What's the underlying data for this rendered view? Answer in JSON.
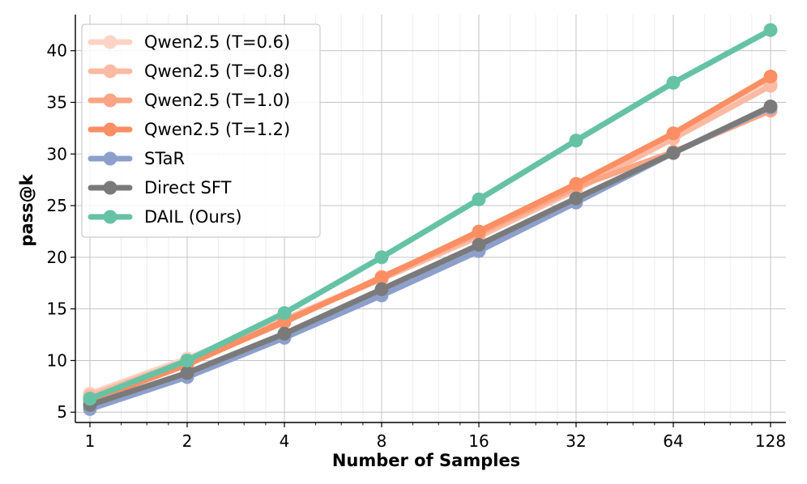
{
  "chart_data": {
    "type": "line",
    "xscale": "log2",
    "x": [
      1,
      2,
      4,
      8,
      16,
      32,
      64,
      128
    ],
    "xticks": [
      "1",
      "2",
      "4",
      "8",
      "16",
      "32",
      "64",
      "128"
    ],
    "yticks": [
      5,
      10,
      15,
      20,
      25,
      30,
      35,
      40
    ],
    "ylim": [
      4,
      43.5
    ],
    "xlabel": "Number of Samples",
    "ylabel": "pass@k",
    "grid": true,
    "legend_position": "top-left",
    "series": [
      {
        "name": "Qwen2.5 (T=0.6)",
        "color": "#fcd3c5",
        "values": [
          6.8,
          10.2,
          14.0,
          18.0,
          22.0,
          26.5,
          31.5,
          37.0
        ]
      },
      {
        "name": "Qwen2.5 (T=0.8)",
        "color": "#fcbaa3",
        "values": [
          6.6,
          10.0,
          13.9,
          17.9,
          22.0,
          26.6,
          31.5,
          36.6
        ]
      },
      {
        "name": "Qwen2.5 (T=1.0)",
        "color": "#fba584",
        "values": [
          6.3,
          9.7,
          13.7,
          18.1,
          22.3,
          26.8,
          30.2,
          34.2
        ]
      },
      {
        "name": "Qwen2.5 (T=1.2)",
        "color": "#fb8e63",
        "values": [
          6.1,
          9.6,
          13.8,
          18.0,
          22.5,
          27.1,
          32.0,
          37.5
        ]
      },
      {
        "name": "STaR",
        "color": "#8da0cb",
        "values": [
          5.3,
          8.4,
          12.2,
          16.3,
          20.6,
          25.3,
          30.1,
          34.5
        ]
      },
      {
        "name": "Direct SFT",
        "color": "#7a7a7a",
        "values": [
          5.7,
          8.8,
          12.6,
          16.9,
          21.2,
          25.7,
          30.1,
          34.6
        ]
      },
      {
        "name": "DAIL (Ours)",
        "color": "#66c2a5",
        "values": [
          6.3,
          10.0,
          14.6,
          20.0,
          25.6,
          31.3,
          36.9,
          42.0
        ]
      }
    ]
  }
}
